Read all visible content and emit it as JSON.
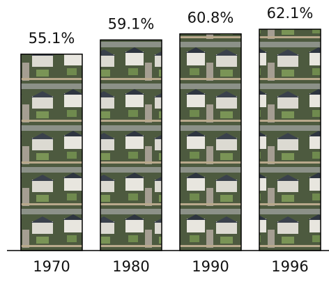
{
  "chart_data": {
    "type": "bar",
    "categories": [
      "1970",
      "1980",
      "1990",
      "1996"
    ],
    "values": [
      55.1,
      59.1,
      60.8,
      62.1
    ],
    "value_labels": [
      "55.1%",
      "59.1%",
      "60.8%",
      "62.1%"
    ]
  }
}
